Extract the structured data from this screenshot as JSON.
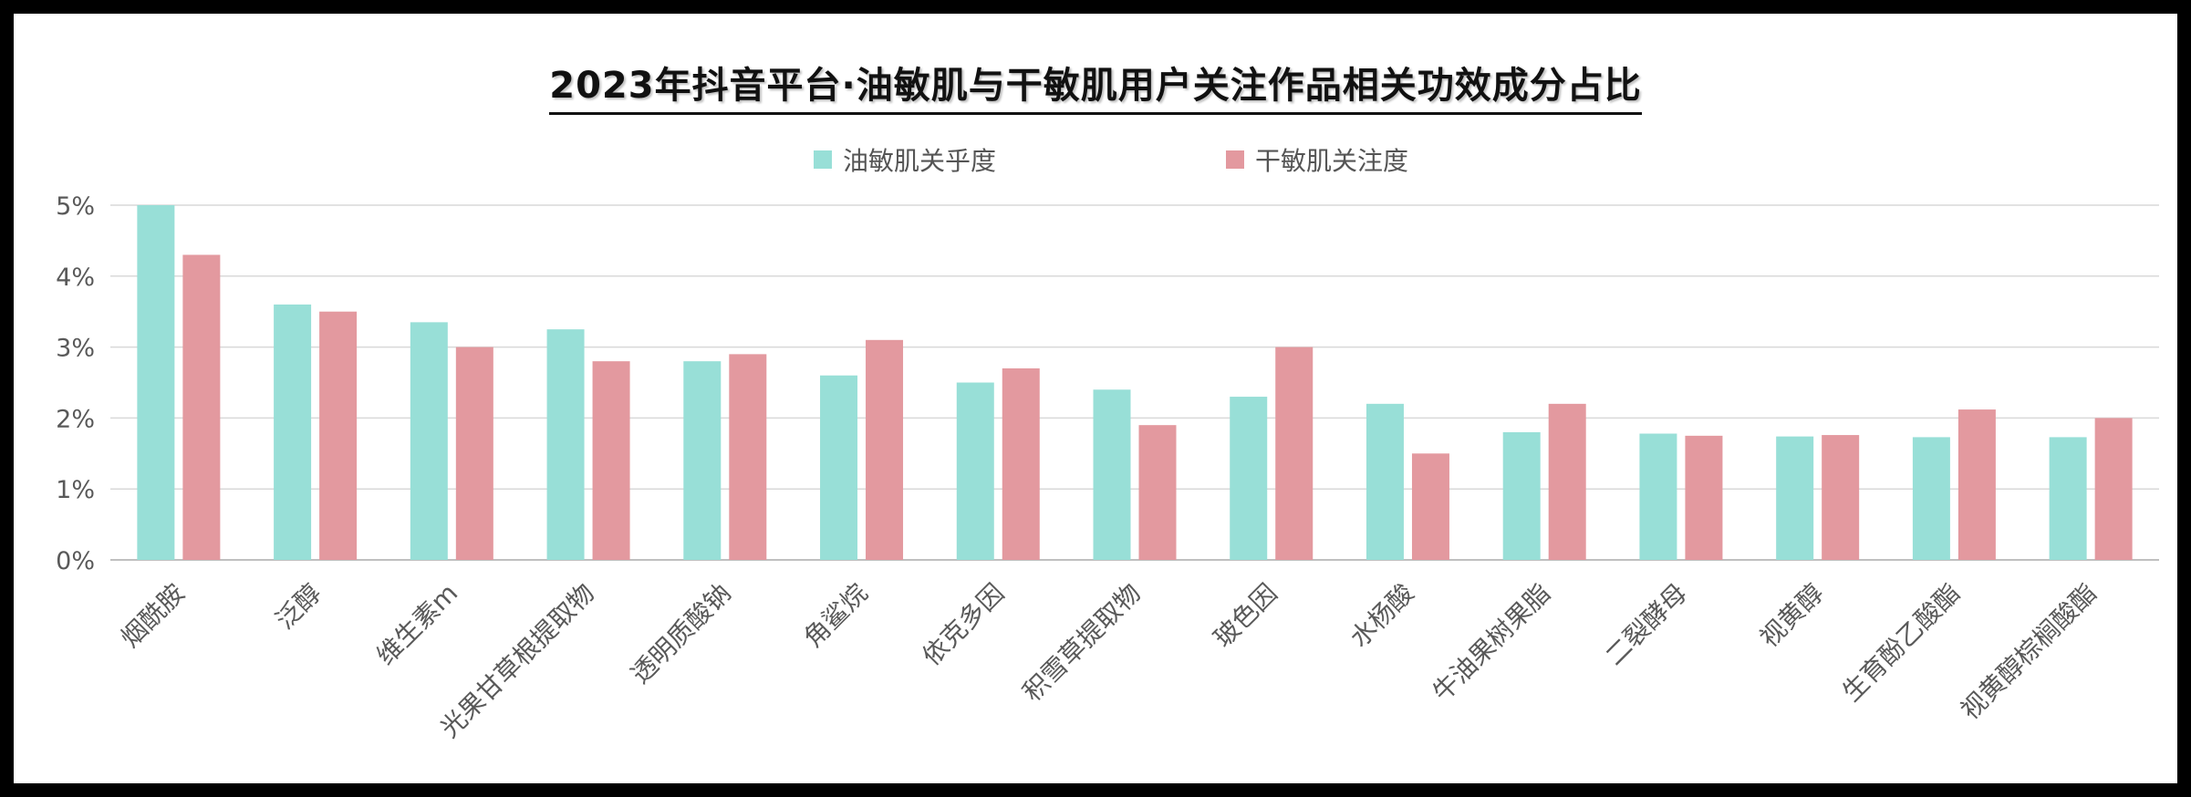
{
  "title": "2023年抖音平台·油敏肌与干敏肌用户关注作品相关功效成分占比",
  "colors": {
    "oily": "#98DFD7",
    "dry": "#E3999F",
    "grid": "#D9D9D9",
    "axis": "#BFBFBF",
    "text": "#595959"
  },
  "chart_data": {
    "type": "bar",
    "title": "2023年抖音平台·油敏肌与干敏肌用户关注作品相关功效成分占比",
    "xlabel": "",
    "ylabel": "",
    "ylim": [
      0,
      5
    ],
    "yticks": [
      "0%",
      "1%",
      "2%",
      "3%",
      "4%",
      "5%"
    ],
    "grid": true,
    "legend_position": "top",
    "categories": [
      "烟酰胺",
      "泛醇",
      "维生素m",
      "光果甘草根提取物",
      "透明质酸钠",
      "角鲨烷",
      "依克多因",
      "积雪草提取物",
      "玻色因",
      "水杨酸",
      "牛油果树果脂",
      "二裂酵母",
      "视黄醇",
      "生育酚乙酸酯",
      "视黄醇棕榈酸酯"
    ],
    "series": [
      {
        "name": "油敏肌关乎度",
        "color": "#98DFD7",
        "values": [
          5.0,
          3.6,
          3.35,
          3.25,
          2.8,
          2.6,
          2.5,
          2.4,
          2.3,
          2.2,
          1.8,
          1.78,
          1.74,
          1.73,
          1.73
        ]
      },
      {
        "name": "干敏肌关注度",
        "color": "#E3999F",
        "values": [
          4.3,
          3.5,
          3.0,
          2.8,
          2.9,
          3.1,
          2.7,
          1.9,
          3.0,
          1.5,
          2.2,
          1.75,
          1.76,
          2.12,
          2.0
        ]
      }
    ]
  }
}
